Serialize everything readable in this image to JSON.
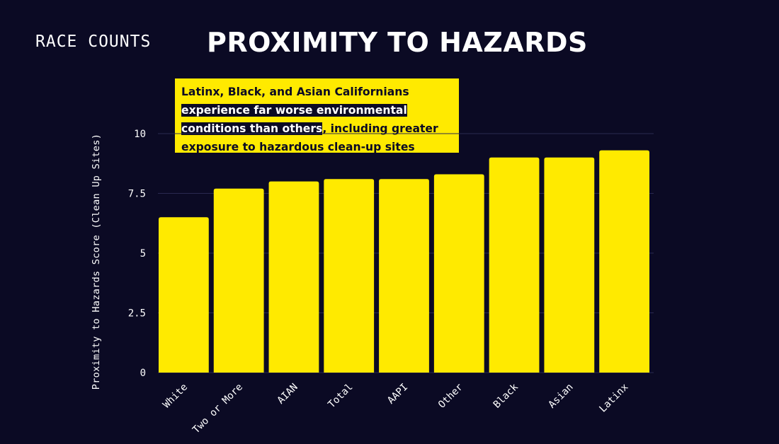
{
  "header": {
    "brand": "RACE COUNTS",
    "title": "PROXIMITY TO HAZARDS"
  },
  "callout": {
    "line1": "Latinx, Black, and Asian Californians",
    "highlight_part1": "experience far worse environmental",
    "highlight_part2": "conditions than others",
    "rest_line3": ", including greater",
    "line4": "exposure to hazardous clean-up sites"
  },
  "colors": {
    "background": "#0b0a24",
    "bar": "#ffea00",
    "text": "#ffffff"
  },
  "chart_data": {
    "type": "bar",
    "title": "PROXIMITY TO HAZARDS",
    "xlabel": "",
    "ylabel": "Proximity to Hazards Score (Clean Up Sites)",
    "categories": [
      "White",
      "Two or More",
      "AIAN",
      "Total",
      "AAPI",
      "Other",
      "Black",
      "Asian",
      "Latinx"
    ],
    "values": [
      6.5,
      7.7,
      8.0,
      8.1,
      8.1,
      8.3,
      9.0,
      9.0,
      9.3
    ],
    "ylim": [
      0,
      10
    ],
    "yticks": [
      0,
      2.5,
      5,
      7.5,
      10
    ],
    "ytick_labels": [
      "0",
      "2.5",
      "5",
      "7.5",
      "10"
    ],
    "grid": true,
    "legend": "none"
  }
}
